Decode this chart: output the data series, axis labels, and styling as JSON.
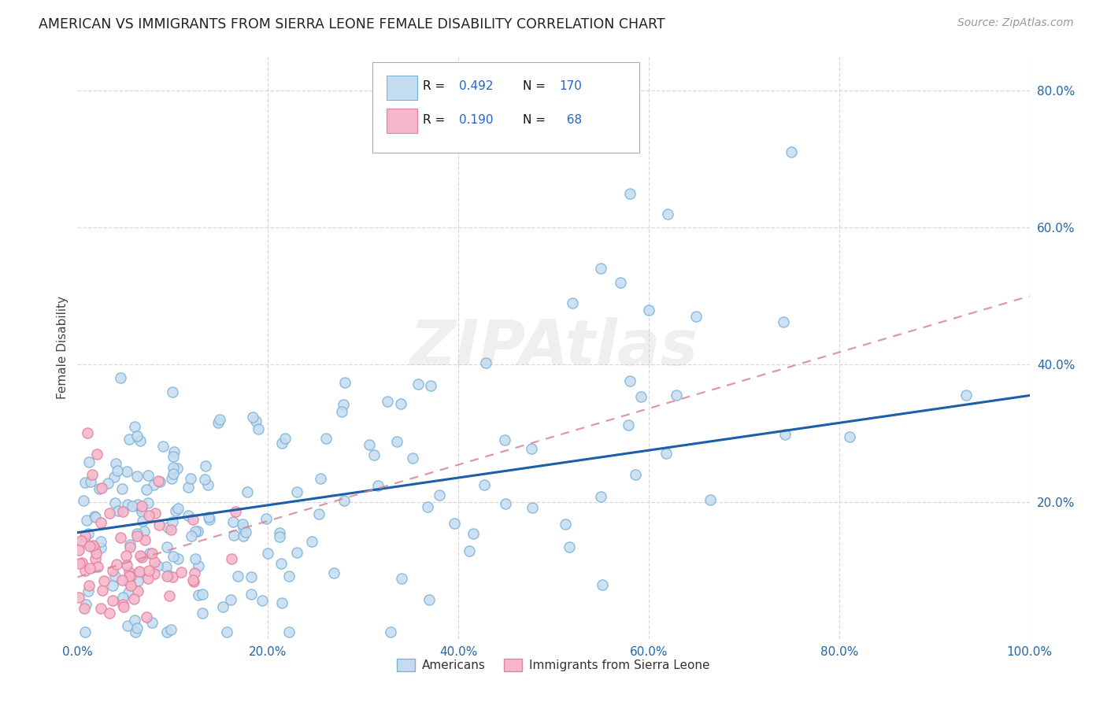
{
  "title": "AMERICAN VS IMMIGRANTS FROM SIERRA LEONE FEMALE DISABILITY CORRELATION CHART",
  "source": "Source: ZipAtlas.com",
  "ylabel": "Female Disability",
  "xlabel": "",
  "xlim": [
    0,
    1.0
  ],
  "ylim": [
    0,
    0.85
  ],
  "xtick_vals": [
    0.0,
    0.2,
    0.4,
    0.6,
    0.8,
    1.0
  ],
  "xtick_labels": [
    "0.0%",
    "20.0%",
    "40.0%",
    "60.0%",
    "80.0%",
    "100.0%"
  ],
  "ytick_labels_right": [
    "20.0%",
    "40.0%",
    "60.0%",
    "80.0%"
  ],
  "ytick_values_right": [
    0.2,
    0.4,
    0.6,
    0.8
  ],
  "blue_edge": "#7ab3d8",
  "blue_fill": "#c5dcf0",
  "pink_edge": "#e87fa0",
  "pink_fill": "#f5b8cb",
  "trendline_blue": "#1a5fa8",
  "trendline_pink": "#d4899a",
  "R_american": 0.492,
  "N_american": 170,
  "R_sierra": 0.19,
  "N_sierra": 68,
  "watermark": "ZIPAtlas",
  "legend_label_am": "Americans",
  "legend_label_sl": "Immigrants from Sierra Leone",
  "background_color": "#ffffff",
  "grid_color": "#d8d8d8",
  "blue_trendline_y0": 0.155,
  "blue_trendline_y1": 0.355,
  "pink_trendline_y0": 0.09,
  "pink_trendline_y1": 0.5
}
